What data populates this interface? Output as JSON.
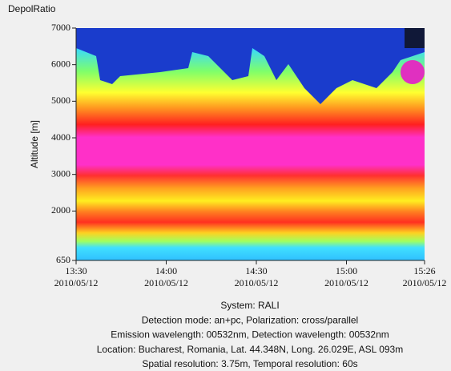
{
  "window_title": "DepolRatio",
  "chart_data": {
    "type": "heatmap",
    "ylabel": "Altitude [m]",
    "ylim": [
      650,
      7000
    ],
    "yticks": [
      650,
      2000,
      3000,
      4000,
      5000,
      6000,
      7000
    ],
    "xlim": [
      "2010-05-12T13:30",
      "2010-05-12T15:26"
    ],
    "xticks": [
      {
        "value": "2010-05-12T13:30",
        "label": [
          "13:30",
          "2010/05/12"
        ]
      },
      {
        "value": "2010-05-12T14:00",
        "label": [
          "14:00",
          "2010/05/12"
        ]
      },
      {
        "value": "2010-05-12T14:30",
        "label": [
          "14:30",
          "2010/05/12"
        ]
      },
      {
        "value": "2010-05-12T15:00",
        "label": [
          "15:00",
          "2010/05/12"
        ]
      },
      {
        "value": "2010-05-12T15:26",
        "label": [
          "15:26",
          "2010/05/12"
        ]
      }
    ],
    "notes": [
      "System: RALI",
      "Detection mode: an+pc, Polarization: cross/parallel",
      "Emission wavelength: 00532nm, Detection wavelength: 00532nm",
      "Location: Bucharest, Romania, Lat. 44.348N, Long. 26.029E, ASL 093m",
      "Spatial resolution: 3.75m, Temporal resolution: 60s"
    ]
  }
}
